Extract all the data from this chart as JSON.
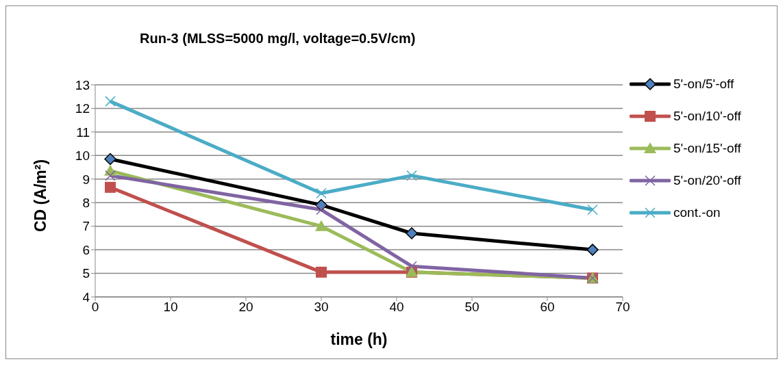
{
  "chart_data": {
    "type": "line",
    "title": "Run-3 (MLSS=5000 mg/l,    voltage=0.5V/cm)",
    "xlabel": "time (h)",
    "ylabel": "CD  (A/m²)",
    "x": [
      2,
      30,
      42,
      66
    ],
    "series": [
      {
        "name": "5'-on/5'-off",
        "color": "#000000",
        "values": [
          9.85,
          7.9,
          6.7,
          6.0
        ],
        "marker": "diamond"
      },
      {
        "name": "5'-on/10'-off",
        "color": "#c0504d",
        "values": [
          8.65,
          5.05,
          5.05,
          4.8
        ],
        "marker": "square"
      },
      {
        "name": "5'-on/15'-off",
        "color": "#9bbb59",
        "values": [
          9.35,
          7.0,
          5.05,
          4.8
        ],
        "marker": "triangle"
      },
      {
        "name": "5'-on/20'-off",
        "color": "#8064a2",
        "values": [
          9.15,
          7.7,
          5.3,
          4.8
        ],
        "marker": "cross"
      },
      {
        "name": "cont.-on",
        "color": "#4bacc6",
        "values": [
          12.3,
          8.4,
          9.15,
          7.7
        ],
        "marker": "cross"
      }
    ],
    "xlim": [
      0,
      70
    ],
    "xticks": [
      0,
      10,
      20,
      30,
      40,
      50,
      60,
      70
    ],
    "ylim": [
      4,
      13
    ],
    "yticks": [
      4,
      5,
      6,
      7,
      8,
      9,
      10,
      11,
      12,
      13
    ],
    "grid": "y",
    "legend": "right",
    "line_style": "solid"
  }
}
